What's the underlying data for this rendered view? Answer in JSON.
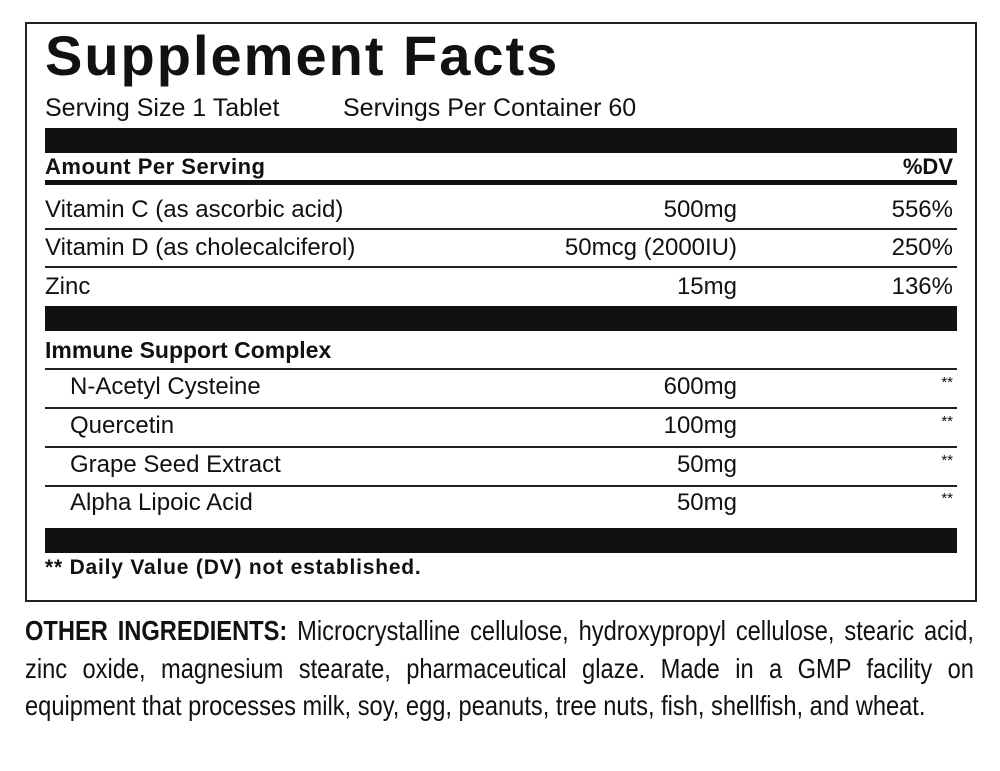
{
  "title": "Supplement Facts",
  "serving": {
    "size": "Serving Size 1 Tablet",
    "per_container": "Servings Per Container 60"
  },
  "header": {
    "amount": "Amount Per Serving",
    "dv": "%DV"
  },
  "nutrients": [
    {
      "name": "Vitamin C (as ascorbic acid)",
      "amount": "500mg",
      "dv": "556%"
    },
    {
      "name": "Vitamin D (as cholecalciferol)",
      "amount": "50mcg (2000IU)",
      "dv": "250%"
    },
    {
      "name": "Zinc",
      "amount": "15mg",
      "dv": "136%"
    }
  ],
  "complex": {
    "title": "Immune Support Complex",
    "items": [
      {
        "name": "N-Acetyl Cysteine",
        "amount": "600mg",
        "dv": "**"
      },
      {
        "name": "Quercetin",
        "amount": "100mg",
        "dv": "**"
      },
      {
        "name": "Grape Seed Extract",
        "amount": "50mg",
        "dv": "**"
      },
      {
        "name": "Alpha Lipoic Acid",
        "amount": "50mg",
        "dv": "**"
      }
    ]
  },
  "footnote": "** Daily Value (DV) not established.",
  "other": {
    "label": "OTHER INGREDIENTS:",
    "text": "Microcrystalline cellulose, hydroxypropyl cellulose, stearic acid, zinc oxide, magnesium stearate, pharmaceutical glaze. Made in a GMP facility on equipment that processes milk, soy, egg, peanuts, tree nuts, fish, shellfish, and wheat."
  }
}
